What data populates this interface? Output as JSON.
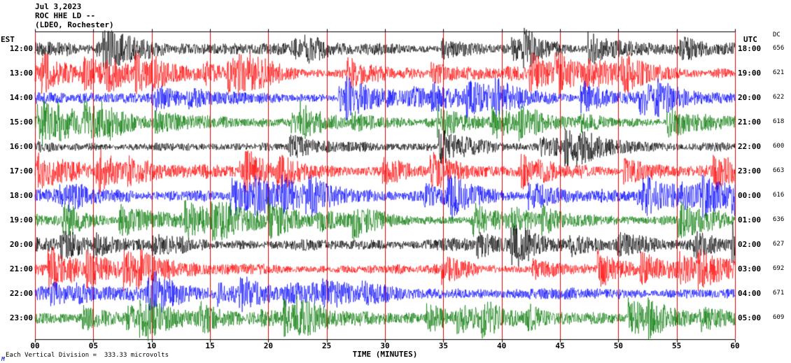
{
  "header": {
    "date": "Jul 3,2023",
    "station": "ROC HHE LD --",
    "location": "(LDEO, Rochester)"
  },
  "axis": {
    "left_title": "EST",
    "right_title": "UTC",
    "dc_title": "DC",
    "x_label": "TIME (MINUTES)",
    "x_ticks": [
      "00",
      "05",
      "10",
      "15",
      "20",
      "25",
      "30",
      "35",
      "40",
      "45",
      "50",
      "55",
      "60"
    ],
    "footnote": "Each Vertical Division =  333.33 microvolts",
    "logo": "M"
  },
  "chart_data": {
    "type": "line",
    "title": "ROC HHE LD -- (LDEO, Rochester)",
    "subtitle": "Jul 3,2023",
    "xlabel": "TIME (MINUTES)",
    "x_range_minutes": [
      0,
      60
    ],
    "x_tick_interval_minutes": 5,
    "grid_on": true,
    "grid_color": "#dd0000",
    "vertical_division_microvolts": 333.33,
    "description": "Helicorder-style seismogram: 12 hourly rows of continuous high-frequency seismic waveform noise with intermittent bursts; one hour of data per row, colors cycling black/red/blue/green",
    "rows": [
      {
        "est": "12:00",
        "utc": "18:00",
        "dc": "656",
        "color": "#000000"
      },
      {
        "est": "13:00",
        "utc": "19:00",
        "dc": "621",
        "color": "#ff0000"
      },
      {
        "est": "14:00",
        "utc": "20:00",
        "dc": "622",
        "color": "#0000ff"
      },
      {
        "est": "15:00",
        "utc": "21:00",
        "dc": "618",
        "color": "#007700"
      },
      {
        "est": "16:00",
        "utc": "22:00",
        "dc": "600",
        "color": "#000000"
      },
      {
        "est": "17:00",
        "utc": "23:00",
        "dc": "663",
        "color": "#ff0000"
      },
      {
        "est": "18:00",
        "utc": "00:00",
        "dc": "616",
        "color": "#0000ff"
      },
      {
        "est": "19:00",
        "utc": "01:00",
        "dc": "636",
        "color": "#007700"
      },
      {
        "est": "20:00",
        "utc": "02:00",
        "dc": "627",
        "color": "#000000"
      },
      {
        "est": "21:00",
        "utc": "03:00",
        "dc": "692",
        "color": "#ff0000"
      },
      {
        "est": "22:00",
        "utc": "04:00",
        "dc": "671",
        "color": "#0000ff"
      },
      {
        "est": "23:00",
        "utc": "05:00",
        "dc": "609",
        "color": "#007700"
      }
    ]
  }
}
